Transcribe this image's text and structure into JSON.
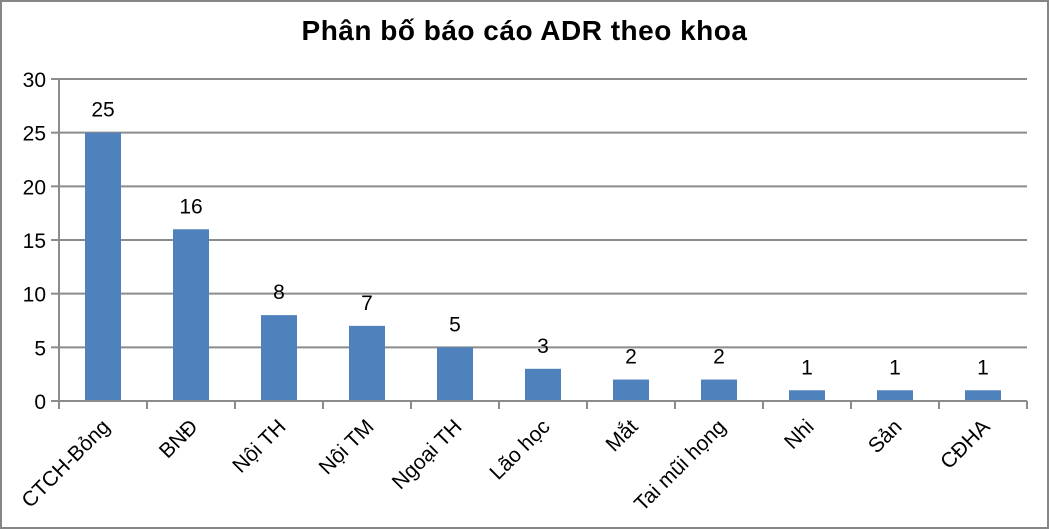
{
  "page": {
    "background": "#ffffff",
    "frame_border_color": "#868686"
  },
  "chart_data": {
    "type": "bar",
    "title": "Phân bố báo cáo ADR theo khoa",
    "categories": [
      "CTCH-Bỏng",
      "BNĐ",
      "Nội TH",
      "Nội TM",
      "Ngoại TH",
      "Lão học",
      "Mắt",
      "Tai mũi họng",
      "Nhi",
      "Sản",
      "CĐHA"
    ],
    "values": [
      25,
      16,
      8,
      7,
      5,
      3,
      2,
      2,
      1,
      1,
      1
    ],
    "xlabel": "",
    "ylabel": "",
    "ylim": [
      0,
      30
    ],
    "yticks": [
      0,
      5,
      10,
      15,
      20,
      25,
      30
    ],
    "grid": true,
    "legend": false,
    "data_labels": true,
    "x_label_rotation": -45,
    "bar_color": "#4F81BD",
    "grid_color": "#8C8C8C",
    "axis_color": "#8C8C8C",
    "label_color": "#000000"
  }
}
